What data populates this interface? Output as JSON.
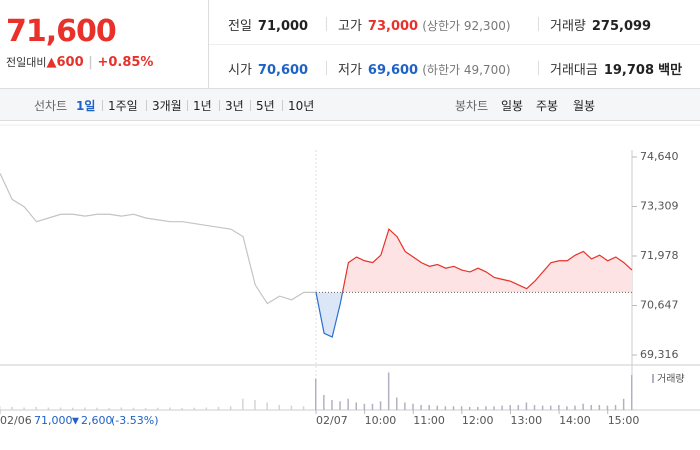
{
  "header": {
    "price": "71,600",
    "change_label": "전일대비",
    "change": "600",
    "change_rate": "+0.85%"
  },
  "info": [
    {
      "label": "전일",
      "value": "71,000",
      "color": "#222222"
    },
    {
      "label": "고가",
      "value": "73,000",
      "note": "(상한가 92,300)",
      "color": "#e8312a"
    },
    {
      "label": "거래량",
      "value": "275,099",
      "color": "#222222"
    },
    {
      "label": "시가",
      "value": "70,600",
      "color": "#1e62c6"
    },
    {
      "label": "저가",
      "value": "69,600",
      "note": "(하한가 49,700)",
      "color": "#1e62c6"
    },
    {
      "label": "거래대금",
      "value": "19,708",
      "unit": "백만",
      "color": "#222222"
    }
  ],
  "tabs": {
    "line_label": "선차트",
    "line": [
      "1일",
      "1주일",
      "3개월",
      "1년",
      "3년",
      "5년",
      "10년"
    ],
    "selected": 0,
    "candle_label": "봉차트",
    "candle": [
      "일봉",
      "주봉",
      "월봉"
    ]
  },
  "chart_data": {
    "type": "line",
    "xlim": [
      -390,
      390
    ],
    "ylim": [
      69316,
      74640
    ],
    "yticks": [
      {
        "value": 74640,
        "label": "74,640"
      },
      {
        "value": 73309,
        "label": "73,309"
      },
      {
        "value": 71978,
        "label": "71,978"
      },
      {
        "value": 70647,
        "label": "70,647"
      },
      {
        "value": 69316,
        "label": "69,316"
      }
    ],
    "xticks": [
      {
        "value": -390,
        "label": "02/06"
      },
      {
        "value": 0,
        "label": "02/07"
      },
      {
        "value": 60,
        "label": "10:00"
      },
      {
        "value": 120,
        "label": "11:00"
      },
      {
        "value": 180,
        "label": "12:00"
      },
      {
        "value": 240,
        "label": "13:00"
      },
      {
        "value": 300,
        "label": "14:00"
      },
      {
        "value": 360,
        "label": "15:00"
      }
    ],
    "baseline": 71000,
    "volume_name": "거래량",
    "volume_color": "#b4b0c4",
    "volume_ylim": [
      0,
      32000
    ],
    "series": [
      {
        "color": "#c4c4c4",
        "x": [
          -390,
          -375,
          -360,
          -345,
          -330,
          -315,
          -300,
          -285,
          -270,
          -255,
          -240,
          -225,
          -210,
          -195,
          -180,
          -165,
          -150,
          -135,
          -120,
          -105,
          -90,
          -75,
          -60,
          -45,
          -30,
          -15,
          0
        ],
        "values": [
          74200,
          73500,
          73300,
          72900,
          73000,
          73100,
          73100,
          73050,
          73100,
          73100,
          73050,
          73100,
          73000,
          72950,
          72900,
          72900,
          72850,
          72800,
          72750,
          72700,
          72500,
          71200,
          70700,
          70900,
          70800,
          71000,
          71000
        ],
        "volume": [
          3000,
          2500,
          2000,
          2500,
          2000,
          2000,
          1800,
          2000,
          1800,
          1500,
          2000,
          1800,
          1500,
          1800,
          2000,
          1500,
          1800,
          2000,
          2500,
          3000,
          9000,
          8000,
          6000,
          4000,
          3500,
          3000,
          5000
        ]
      },
      {
        "color": "#e8312a",
        "color_below": "#2b6fd1",
        "fill": "#fde3e3",
        "fill_below": "#dbe6f7",
        "x": [
          0,
          10,
          20,
          30,
          40,
          50,
          60,
          70,
          80,
          90,
          100,
          110,
          120,
          130,
          140,
          150,
          160,
          170,
          180,
          190,
          200,
          210,
          220,
          230,
          240,
          250,
          260,
          270,
          280,
          290,
          300,
          310,
          320,
          330,
          340,
          350,
          360,
          370,
          380,
          390
        ],
        "values": [
          71000,
          69900,
          69800,
          70700,
          71800,
          71950,
          71850,
          71800,
          72000,
          72700,
          72500,
          72100,
          71950,
          71800,
          71700,
          71750,
          71650,
          71700,
          71600,
          71550,
          71650,
          71550,
          71400,
          71350,
          71300,
          71200,
          71100,
          71300,
          71550,
          71800,
          71850,
          71850,
          72000,
          72100,
          71900,
          72000,
          71850,
          71950,
          71800,
          71600
        ],
        "volume": [
          25000,
          12000,
          8000,
          7000,
          9000,
          6000,
          5000,
          5000,
          7000,
          30000,
          10000,
          6000,
          5000,
          4000,
          4000,
          3500,
          3000,
          3000,
          3000,
          2500,
          2500,
          3000,
          3000,
          3500,
          4000,
          4000,
          6000,
          4000,
          3500,
          3500,
          4000,
          3000,
          3500,
          5000,
          4000,
          4000,
          3500,
          4000,
          9000,
          28000
        ]
      }
    ],
    "footer": {
      "close": "71,000",
      "change": "2,600",
      "rate": "(-3.53%)"
    }
  }
}
